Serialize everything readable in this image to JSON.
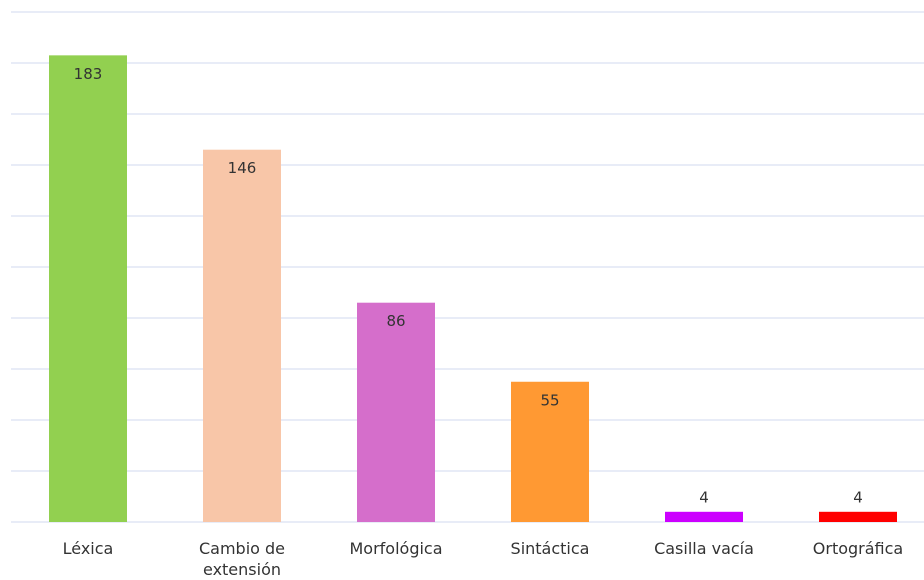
{
  "chart_data": {
    "type": "bar",
    "categories": [
      "Léxica",
      "Cambio de extensión",
      "Morfológica",
      "Sintáctica",
      "Casilla vacía",
      "Ortográfica"
    ],
    "values": [
      183,
      146,
      86,
      55,
      4,
      4
    ],
    "colors": [
      "#92d050",
      "#f8c6a8",
      "#d56ecb",
      "#ff9933",
      "#cc00ff",
      "#ff0000"
    ],
    "ylim": [
      0,
      200
    ],
    "yticks": [
      0,
      20,
      40,
      60,
      80,
      100,
      120,
      140,
      160,
      180,
      200
    ],
    "grid": true
  }
}
